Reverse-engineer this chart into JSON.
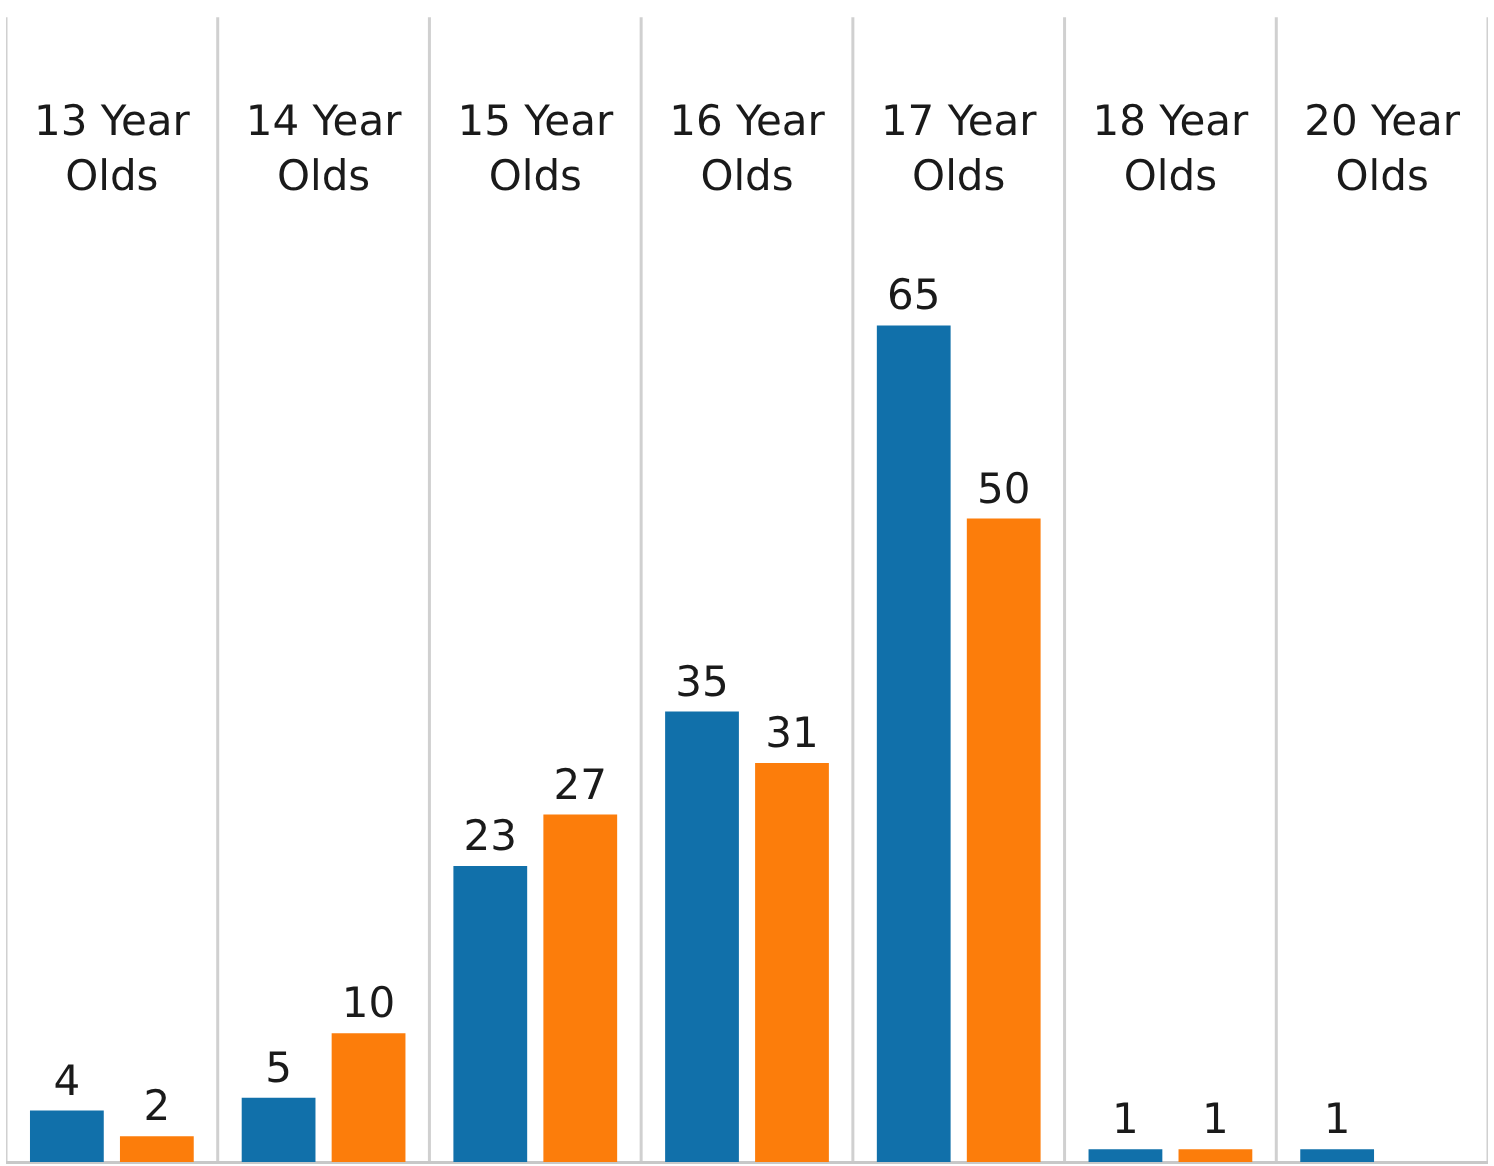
{
  "chart_data": {
    "type": "bar",
    "categories": [
      "13 Year Olds",
      "14 Year Olds",
      "15 Year Olds",
      "16 Year Olds",
      "17 Year Olds",
      "18 Year Olds",
      "20 Year Olds"
    ],
    "series": [
      {
        "color": "#1170aa",
        "values": [
          4,
          5,
          23,
          35,
          65,
          1,
          1
        ]
      },
      {
        "color": "#fc7d0b",
        "values": [
          2,
          10,
          27,
          31,
          50,
          1,
          null
        ]
      }
    ],
    "data_labels": true,
    "grid": "x"
  }
}
